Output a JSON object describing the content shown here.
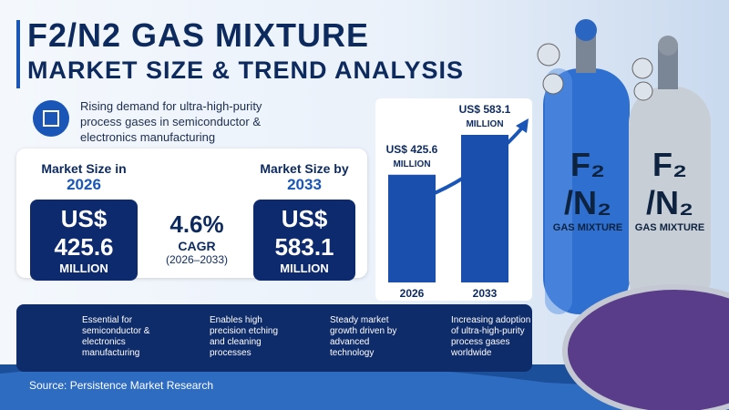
{
  "header": {
    "title_line1": "F2/N2 GAS MIXTURE",
    "title_line2": "MARKET SIZE & TREND ANALYSIS",
    "tagline": "Rising demand for ultra-high-purity process gases in semiconductor & electronics manufacturing"
  },
  "stats": [
    {
      "label": "Market Size in",
      "year": "2026",
      "value": "US$ 425.6",
      "unit": "MILLION"
    },
    {
      "value": "4.6%",
      "label": "CAGR",
      "period": "(2026–2033)"
    },
    {
      "label": "Market Size by",
      "year": "2033",
      "value": "US$ 583.1",
      "unit": "MILLION"
    }
  ],
  "chart": {
    "type": "bar",
    "categories": [
      "2026",
      "2033"
    ],
    "values": [
      425.6,
      583.1
    ],
    "value_labels": [
      "US$ 425.6",
      "US$ 583.1"
    ],
    "unit": "MILLION"
  },
  "features": [
    "Essential for semiconductor & electronics manufacturing",
    "Enables high precision etching and cleaning processes",
    "Steady market growth driven by advanced technology",
    "Increasing adoption of ultra-high-purity process gases worldwide"
  ],
  "cylinders": [
    {
      "formula_top": "F₂",
      "formula_bottom": "/N₂",
      "label": "GAS MIXTURE"
    },
    {
      "formula_top": "F₂",
      "formula_bottom": "/N₂",
      "label": "GAS MIXTURE"
    }
  ],
  "source": "Source: Persistence Market Research"
}
